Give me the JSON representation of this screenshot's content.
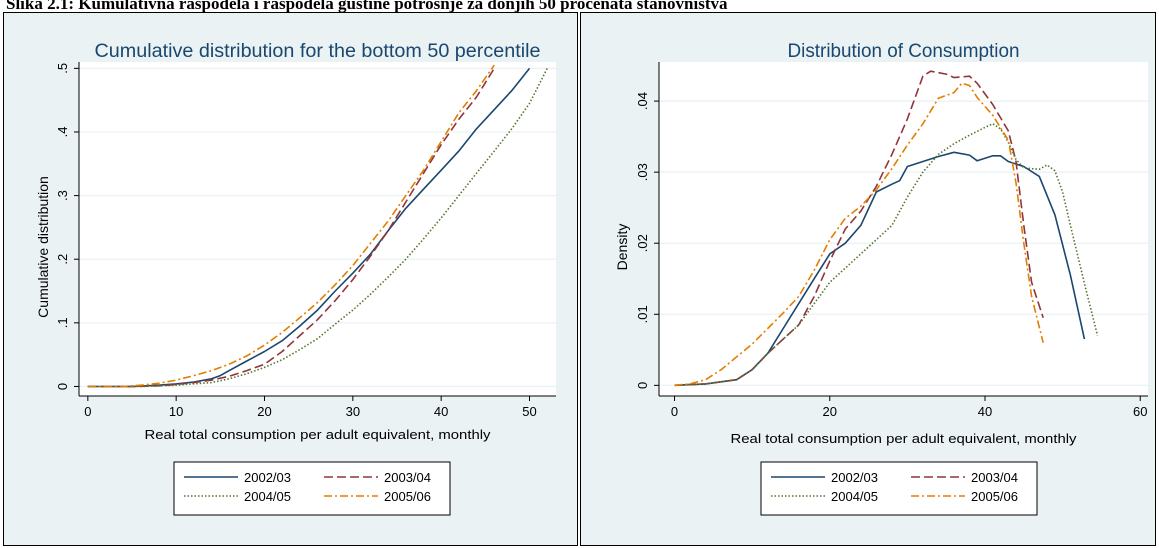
{
  "caption": "Slika 2.1:  Kumulativna raspodela i raspodela gustine potrošnje za donjih 50 procenata stanovništva",
  "colors": {
    "panel_bg": "#eaf2f3",
    "plot_bg": "#ffffff",
    "grid": "#eaf2f3",
    "title": "#1a476f"
  },
  "legend_rows": [
    [
      "2002/03",
      "2003/04"
    ],
    [
      "2004/05",
      "2005/06"
    ]
  ],
  "chart_data": [
    {
      "type": "line",
      "title": "Cumulative distribution for the bottom 50 percentile",
      "xlabel": "Real total consumption per adult equivalent, monthly",
      "ylabel": "Cumulative distribution",
      "xlim": [
        -1,
        53
      ],
      "ylim": [
        -0.015,
        0.51
      ],
      "xticks": [
        0,
        10,
        20,
        30,
        40,
        50
      ],
      "yticks": [
        0,
        0.1,
        0.2,
        0.3,
        0.4,
        0.5
      ],
      "ytick_labels": [
        "0",
        ".1",
        ".2",
        ".3",
        ".4",
        ".5"
      ],
      "grid": true,
      "legend": "bottom",
      "series": [
        {
          "name": "2002/03",
          "color": "#1a476f",
          "dash": "solid",
          "points": [
            [
              0,
              0
            ],
            [
              5,
              0
            ],
            [
              8,
              0.002
            ],
            [
              10,
              0.004
            ],
            [
              12,
              0.007
            ],
            [
              14,
              0.012
            ],
            [
              15,
              0.017
            ],
            [
              16,
              0.025
            ],
            [
              18,
              0.04
            ],
            [
              20,
              0.055
            ],
            [
              22,
              0.072
            ],
            [
              24,
              0.095
            ],
            [
              26,
              0.12
            ],
            [
              28,
              0.15
            ],
            [
              30,
              0.178
            ],
            [
              32,
              0.208
            ],
            [
              34,
              0.245
            ],
            [
              36,
              0.28
            ],
            [
              38,
              0.31
            ],
            [
              40,
              0.34
            ],
            [
              42,
              0.37
            ],
            [
              44,
              0.405
            ],
            [
              46,
              0.435
            ],
            [
              48,
              0.465
            ],
            [
              50,
              0.5
            ]
          ]
        },
        {
          "name": "2003/04",
          "color": "#90353b",
          "dash": "longdash",
          "points": [
            [
              0,
              0
            ],
            [
              5,
              0
            ],
            [
              8,
              0.001
            ],
            [
              10,
              0.003
            ],
            [
              12,
              0.006
            ],
            [
              14,
              0.01
            ],
            [
              16,
              0.016
            ],
            [
              18,
              0.025
            ],
            [
              20,
              0.035
            ],
            [
              22,
              0.055
            ],
            [
              24,
              0.08
            ],
            [
              26,
              0.105
            ],
            [
              28,
              0.135
            ],
            [
              30,
              0.168
            ],
            [
              32,
              0.205
            ],
            [
              34,
              0.245
            ],
            [
              36,
              0.29
            ],
            [
              38,
              0.335
            ],
            [
              40,
              0.38
            ],
            [
              42,
              0.42
            ],
            [
              44,
              0.455
            ],
            [
              46,
              0.5
            ]
          ]
        },
        {
          "name": "2004/05",
          "color": "#55752f",
          "dash": "dotted",
          "points": [
            [
              0,
              0
            ],
            [
              6,
              0
            ],
            [
              10,
              0.002
            ],
            [
              14,
              0.006
            ],
            [
              16,
              0.012
            ],
            [
              18,
              0.02
            ],
            [
              20,
              0.03
            ],
            [
              22,
              0.042
            ],
            [
              24,
              0.058
            ],
            [
              26,
              0.075
            ],
            [
              28,
              0.098
            ],
            [
              30,
              0.12
            ],
            [
              32,
              0.145
            ],
            [
              34,
              0.172
            ],
            [
              36,
              0.2
            ],
            [
              38,
              0.232
            ],
            [
              40,
              0.265
            ],
            [
              42,
              0.3
            ],
            [
              44,
              0.335
            ],
            [
              46,
              0.37
            ],
            [
              48,
              0.405
            ],
            [
              50,
              0.445
            ],
            [
              52,
              0.5
            ]
          ]
        },
        {
          "name": "2005/06",
          "color": "#e37e00",
          "dash": "dashdot",
          "points": [
            [
              0,
              0
            ],
            [
              4,
              0
            ],
            [
              6,
              0.002
            ],
            [
              8,
              0.005
            ],
            [
              10,
              0.01
            ],
            [
              12,
              0.017
            ],
            [
              14,
              0.025
            ],
            [
              16,
              0.035
            ],
            [
              18,
              0.048
            ],
            [
              20,
              0.065
            ],
            [
              22,
              0.085
            ],
            [
              24,
              0.108
            ],
            [
              26,
              0.132
            ],
            [
              28,
              0.16
            ],
            [
              30,
              0.19
            ],
            [
              32,
              0.225
            ],
            [
              34,
              0.26
            ],
            [
              36,
              0.3
            ],
            [
              38,
              0.34
            ],
            [
              40,
              0.385
            ],
            [
              42,
              0.43
            ],
            [
              44,
              0.465
            ],
            [
              46,
              0.505
            ]
          ]
        }
      ]
    },
    {
      "type": "line",
      "title": "Distribution of Consumption",
      "xlabel": "Real total consumption per adult equivalent, monthly",
      "ylabel": "Density",
      "xlim": [
        -2,
        61
      ],
      "ylim": [
        -0.0015,
        0.0455
      ],
      "xticks": [
        0,
        20,
        40,
        60
      ],
      "yticks": [
        0,
        0.01,
        0.02,
        0.03,
        0.04
      ],
      "ytick_labels": [
        "0",
        ".01",
        ".02",
        ".03",
        ".04"
      ],
      "grid": true,
      "legend": "bottom",
      "series": [
        {
          "name": "2002/03",
          "color": "#1a476f",
          "dash": "solid",
          "points": [
            [
              0,
              0
            ],
            [
              4,
              0.0002
            ],
            [
              8,
              0.0008
            ],
            [
              10,
              0.0022
            ],
            [
              12,
              0.0045
            ],
            [
              14,
              0.008
            ],
            [
              16,
              0.0115
            ],
            [
              18,
              0.015
            ],
            [
              20,
              0.0185
            ],
            [
              22,
              0.02
            ],
            [
              24,
              0.0225
            ],
            [
              26,
              0.0272
            ],
            [
              28,
              0.0283
            ],
            [
              29,
              0.0288
            ],
            [
              30,
              0.0308
            ],
            [
              32,
              0.0315
            ],
            [
              34,
              0.0322
            ],
            [
              36,
              0.0328
            ],
            [
              38,
              0.0324
            ],
            [
              39,
              0.0316
            ],
            [
              41,
              0.0323
            ],
            [
              42,
              0.0323
            ],
            [
              43,
              0.0315
            ],
            [
              45,
              0.0308
            ],
            [
              47,
              0.0294
            ],
            [
              49,
              0.024
            ],
            [
              51,
              0.0155
            ],
            [
              52.8,
              0.0065
            ]
          ]
        },
        {
          "name": "2003/04",
          "color": "#90353b",
          "dash": "longdash",
          "points": [
            [
              0,
              0
            ],
            [
              4,
              0.0002
            ],
            [
              8,
              0.0008
            ],
            [
              10,
              0.0022
            ],
            [
              12,
              0.0045
            ],
            [
              14,
              0.0065
            ],
            [
              16,
              0.0085
            ],
            [
              18,
              0.0125
            ],
            [
              20,
              0.0175
            ],
            [
              22,
              0.022
            ],
            [
              24,
              0.0245
            ],
            [
              26,
              0.028
            ],
            [
              28,
              0.0325
            ],
            [
              30,
              0.0375
            ],
            [
              32,
              0.0435
            ],
            [
              33,
              0.0442
            ],
            [
              35,
              0.0438
            ],
            [
              36,
              0.0433
            ],
            [
              38,
              0.0435
            ],
            [
              39,
              0.0425
            ],
            [
              41,
              0.0395
            ],
            [
              43,
              0.0358
            ],
            [
              44,
              0.0315
            ],
            [
              45,
              0.0225
            ],
            [
              46,
              0.0145
            ],
            [
              47.5,
              0.0095
            ]
          ]
        },
        {
          "name": "2004/05",
          "color": "#55752f",
          "dash": "dotted",
          "points": [
            [
              0,
              0
            ],
            [
              4,
              0.0002
            ],
            [
              8,
              0.0008
            ],
            [
              10,
              0.0022
            ],
            [
              12,
              0.0045
            ],
            [
              14,
              0.0065
            ],
            [
              16,
              0.0085
            ],
            [
              18,
              0.0115
            ],
            [
              20,
              0.0145
            ],
            [
              22,
              0.0165
            ],
            [
              24,
              0.0185
            ],
            [
              26,
              0.0205
            ],
            [
              28,
              0.0225
            ],
            [
              30,
              0.0265
            ],
            [
              32,
              0.03
            ],
            [
              34,
              0.0325
            ],
            [
              36,
              0.034
            ],
            [
              38,
              0.0352
            ],
            [
              40,
              0.0363
            ],
            [
              41,
              0.0368
            ],
            [
              42,
              0.0361
            ],
            [
              43,
              0.0342
            ],
            [
              44,
              0.0318
            ],
            [
              45,
              0.0306
            ],
            [
              47,
              0.0304
            ],
            [
              48,
              0.031
            ],
            [
              49,
              0.0302
            ],
            [
              50,
              0.0272
            ],
            [
              51,
              0.0225
            ],
            [
              53,
              0.0135
            ],
            [
              54.5,
              0.007
            ]
          ]
        },
        {
          "name": "2005/06",
          "color": "#e37e00",
          "dash": "dashdot",
          "points": [
            [
              0,
              0
            ],
            [
              2,
              0.0002
            ],
            [
              4,
              0.0008
            ],
            [
              6,
              0.0022
            ],
            [
              8,
              0.004
            ],
            [
              10,
              0.0058
            ],
            [
              12,
              0.008
            ],
            [
              14,
              0.0102
            ],
            [
              16,
              0.0125
            ],
            [
              18,
              0.0162
            ],
            [
              20,
              0.0205
            ],
            [
              22,
              0.0235
            ],
            [
              24,
              0.0252
            ],
            [
              26,
              0.0275
            ],
            [
              28,
              0.0305
            ],
            [
              30,
              0.0338
            ],
            [
              32,
              0.0368
            ],
            [
              34,
              0.0404
            ],
            [
              36,
              0.0412
            ],
            [
              37,
              0.0425
            ],
            [
              38,
              0.0422
            ],
            [
              39,
              0.0405
            ],
            [
              41,
              0.038
            ],
            [
              43,
              0.0345
            ],
            [
              44,
              0.0285
            ],
            [
              45,
              0.02
            ],
            [
              46,
              0.0125
            ],
            [
              47.5,
              0.006
            ]
          ]
        }
      ]
    }
  ]
}
